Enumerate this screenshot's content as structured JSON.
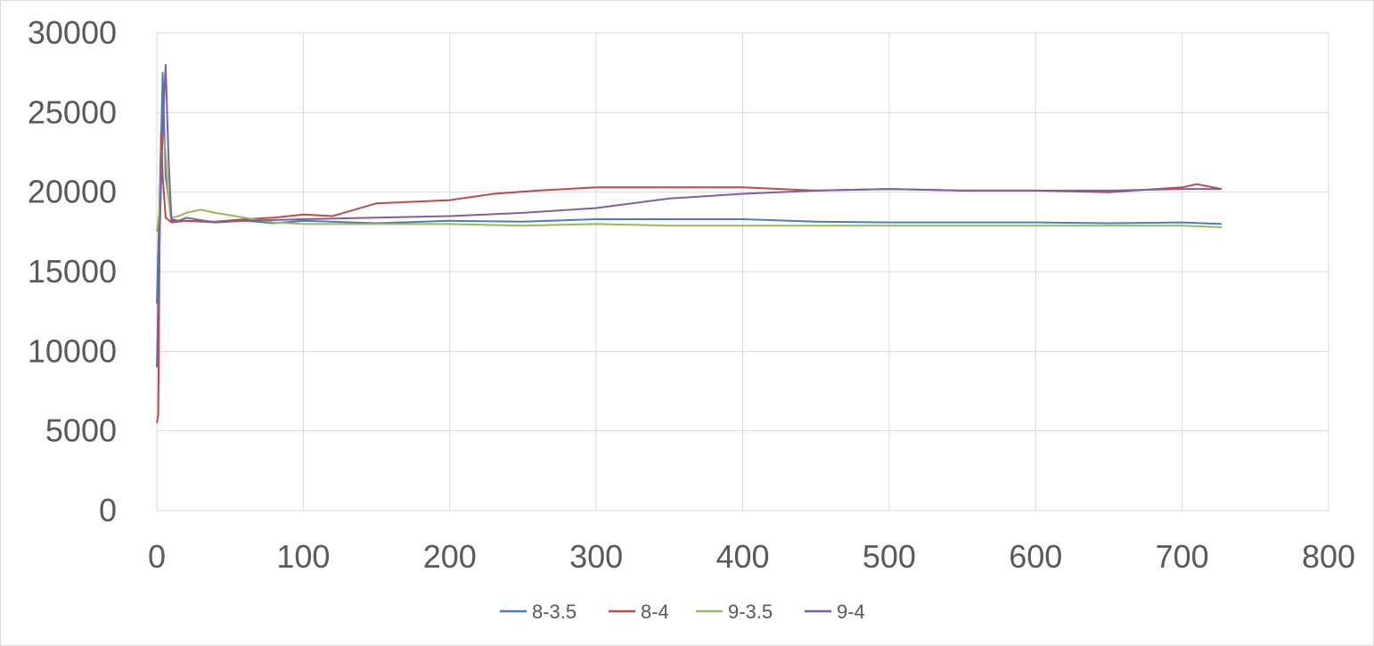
{
  "chart_data": {
    "type": "line",
    "title": "",
    "xlabel": "",
    "ylabel": "",
    "xlim": [
      0,
      800
    ],
    "ylim": [
      0,
      30000
    ],
    "x_ticks": [
      0,
      100,
      200,
      300,
      400,
      500,
      600,
      700,
      800
    ],
    "y_ticks": [
      0,
      5000,
      10000,
      15000,
      20000,
      25000,
      30000
    ],
    "grid": true,
    "legend": "bottom",
    "series": [
      {
        "name": "8-3.5",
        "color": "#4a7ebb",
        "x": [
          0,
          2,
          4,
          6,
          10,
          20,
          40,
          60,
          80,
          100,
          150,
          200,
          250,
          300,
          350,
          400,
          450,
          500,
          550,
          600,
          650,
          700,
          727
        ],
        "y": [
          13000,
          20000,
          27500,
          21000,
          18200,
          18200,
          18100,
          18200,
          18050,
          18200,
          18050,
          18200,
          18150,
          18300,
          18300,
          18300,
          18150,
          18100,
          18100,
          18100,
          18050,
          18100,
          18000
        ]
      },
      {
        "name": "8-4",
        "color": "#be4b48",
        "x": [
          0,
          1,
          2,
          3,
          4,
          6,
          10,
          20,
          40,
          60,
          80,
          100,
          120,
          150,
          200,
          230,
          260,
          300,
          350,
          400,
          450,
          500,
          550,
          600,
          650,
          700,
          710,
          727
        ],
        "y": [
          5500,
          6000,
          18000,
          23800,
          21000,
          18400,
          18100,
          18200,
          18150,
          18300,
          18400,
          18600,
          18500,
          19300,
          19500,
          19900,
          20100,
          20300,
          20300,
          20300,
          20100,
          20200,
          20100,
          20100,
          20000,
          20300,
          20500,
          20200
        ]
      },
      {
        "name": "9-3.5",
        "color": "#98b954",
        "x": [
          0,
          2,
          4,
          6,
          8,
          10,
          15,
          20,
          30,
          40,
          60,
          80,
          100,
          150,
          200,
          250,
          300,
          350,
          400,
          450,
          500,
          550,
          600,
          650,
          700,
          727
        ],
        "y": [
          17500,
          19000,
          23800,
          22500,
          19500,
          18400,
          18500,
          18700,
          18900,
          18700,
          18400,
          18100,
          18000,
          18000,
          18000,
          17900,
          18000,
          17900,
          17900,
          17900,
          17900,
          17900,
          17900,
          17900,
          17900,
          17800
        ]
      },
      {
        "name": "9-4",
        "color": "#7d60a0",
        "x": [
          0,
          2,
          4,
          6,
          8,
          10,
          15,
          20,
          40,
          60,
          100,
          150,
          200,
          250,
          300,
          350,
          400,
          450,
          500,
          550,
          600,
          650,
          700,
          727
        ],
        "y": [
          9000,
          17500,
          24000,
          28000,
          22000,
          18300,
          18200,
          18400,
          18100,
          18200,
          18300,
          18400,
          18500,
          18700,
          19000,
          19600,
          19900,
          20100,
          20200,
          20100,
          20100,
          20100,
          20200,
          20200
        ]
      }
    ]
  }
}
